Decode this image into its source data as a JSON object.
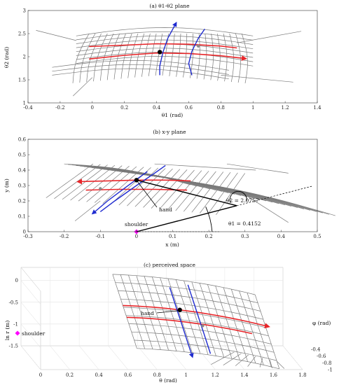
{
  "chart_data": [
    {
      "type": "line",
      "title": "(a) θ1-θ2 plane",
      "xlabel": "θ1 (rad)",
      "ylabel": "θ2 (rad)",
      "xlim": [
        -0.4,
        1.4
      ],
      "ylim": [
        1,
        3
      ],
      "xticks": [
        "-0.4",
        "-0.2",
        "0",
        "0.2",
        "0.4",
        "0.6",
        "0.8",
        "1",
        "1.2",
        "1.4"
      ],
      "yticks": [
        "1",
        "1.5",
        "2",
        "2.5",
        "3"
      ],
      "series": [
        {
          "color": "#e8262a",
          "role": "red-curve-arrow",
          "x": [
            -0.02,
            0.2,
            0.4,
            0.6,
            0.8,
            0.95
          ],
          "y": [
            1.95,
            2.03,
            2.08,
            2.07,
            2.02,
            1.96
          ]
        },
        {
          "color": "#e8262a",
          "role": "red-curve",
          "x": [
            -0.02,
            0.2,
            0.4,
            0.6,
            0.8,
            0.9
          ],
          "y": [
            2.22,
            2.25,
            2.28,
            2.27,
            2.23,
            2.19
          ]
        },
        {
          "color": "#1f2bd0",
          "role": "blue-curve-arrow",
          "x": [
            0.42,
            0.42,
            0.44,
            0.47,
            0.52
          ],
          "y": [
            1.6,
            1.8,
            2.1,
            2.4,
            2.72
          ]
        },
        {
          "color": "#1f2bd0",
          "role": "blue-curve",
          "x": [
            0.62,
            0.6,
            0.62,
            0.66,
            0.7
          ],
          "y": [
            1.6,
            1.85,
            2.12,
            2.4,
            2.6
          ]
        }
      ],
      "points": [
        {
          "x": 0.42,
          "y": 2.1,
          "color": "#000000"
        },
        {
          "x": 0.66,
          "y": 2.23,
          "color": "#8a8a8a"
        }
      ]
    },
    {
      "type": "line",
      "title": "(b) x-y plane",
      "xlabel": "x (m)",
      "ylabel": "y (m)",
      "xlim": [
        -0.3,
        0.5
      ],
      "ylim": [
        0,
        0.6
      ],
      "xticks": [
        "-0.3",
        "-0.2",
        "-0.1",
        "0",
        "0.1",
        "0.2",
        "0.3",
        "0.4",
        "0.5"
      ],
      "yticks": [
        "0",
        "0.1",
        "0.2",
        "0.3",
        "0.4",
        "0.5",
        "0.6"
      ],
      "series": [
        {
          "color": "#e8262a",
          "role": "red-curve-arrow",
          "x": [
            0.15,
            0.08,
            0.0,
            -0.08,
            -0.16
          ],
          "y": [
            0.33,
            0.335,
            0.335,
            0.33,
            0.325
          ]
        },
        {
          "color": "#e8262a",
          "role": "red-curve",
          "x": [
            0.14,
            0.05,
            -0.05,
            -0.14
          ],
          "y": [
            0.27,
            0.275,
            0.275,
            0.27
          ]
        },
        {
          "color": "#1f2bd0",
          "role": "blue-curve-arrow",
          "x": [
            0.03,
            0.0,
            -0.04,
            -0.08,
            -0.12
          ],
          "y": [
            0.39,
            0.34,
            0.27,
            0.2,
            0.12
          ]
        },
        {
          "color": "#1f2bd0",
          "role": "blue-curve",
          "x": [
            0.08,
            0.05,
            0.0,
            -0.06,
            -0.1
          ],
          "y": [
            0.43,
            0.38,
            0.3,
            0.2,
            0.13
          ]
        }
      ],
      "points": [
        {
          "x": 0.0,
          "y": 0.335,
          "color": "#000000"
        },
        {
          "x": -0.1,
          "y": 0.28,
          "color": "#8a8a8a"
        },
        {
          "x": 0.0,
          "y": 0.0,
          "color": "#ff00ff"
        }
      ],
      "arm": {
        "shoulder": [
          0.0,
          0.0
        ],
        "elbow": [
          0.2775,
          0.1689
        ],
        "hand": [
          0.0,
          0.335
        ]
      },
      "annotations": {
        "hand": "hand",
        "shoulder": "shoulder",
        "theta2": "θ2 = 2.0757",
        "theta1": "θ1 = 0.4152"
      }
    },
    {
      "type": "line",
      "title": "(c) perceived space",
      "xlabel": "θ (rad)",
      "ylabel": "ln r (m)",
      "zlabel": "φ (rad)",
      "xlim": [
        0,
        1.8
      ],
      "ylim": [
        -1.5,
        0.3
      ],
      "zlim": [
        -1,
        -0.3
      ],
      "xticks": [
        "0",
        "0.2",
        "0.4",
        "0.6",
        "0.8",
        "1",
        "1.2",
        "1.4",
        "1.6",
        "1.8"
      ],
      "yticks": [
        "-1.5",
        "-1",
        "-0.5",
        "0"
      ],
      "zticks": [
        "-0.4",
        "-0.6",
        "-0.8",
        "-1"
      ],
      "annotations": {
        "hand": "hand",
        "shoulder": "shoulder"
      }
    }
  ]
}
